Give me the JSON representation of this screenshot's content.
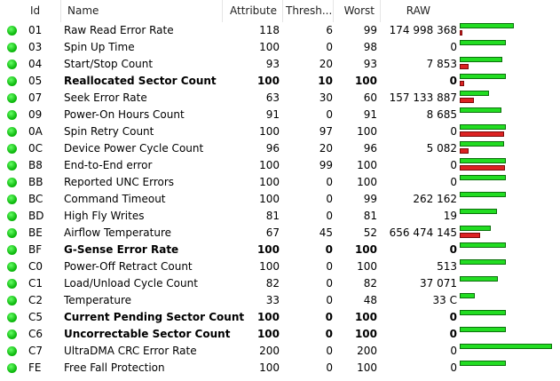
{
  "table": {
    "header": [
      "Id",
      "Name",
      "Attribute",
      "Thresh...",
      "Worst",
      "RAW"
    ],
    "rows": [
      {
        "id": "01",
        "name": "Raw Read Error Rate",
        "attribute": 118,
        "threshold": 6,
        "worst": 99,
        "raw": "174 998 368",
        "bold": false
      },
      {
        "id": "03",
        "name": "Spin Up Time",
        "attribute": 100,
        "threshold": 0,
        "worst": 98,
        "raw": "0",
        "bold": false
      },
      {
        "id": "04",
        "name": "Start/Stop Count",
        "attribute": 93,
        "threshold": 20,
        "worst": 93,
        "raw": "7 853",
        "bold": false
      },
      {
        "id": "05",
        "name": "Reallocated Sector Count",
        "attribute": 100,
        "threshold": 10,
        "worst": 100,
        "raw": "0",
        "bold": true
      },
      {
        "id": "07",
        "name": "Seek Error Rate",
        "attribute": 63,
        "threshold": 30,
        "worst": 60,
        "raw": "157 133 887",
        "bold": false
      },
      {
        "id": "09",
        "name": "Power-On Hours Count",
        "attribute": 91,
        "threshold": 0,
        "worst": 91,
        "raw": "8 685",
        "bold": false
      },
      {
        "id": "0A",
        "name": "Spin Retry Count",
        "attribute": 100,
        "threshold": 97,
        "worst": 100,
        "raw": "0",
        "bold": false
      },
      {
        "id": "0C",
        "name": "Device Power Cycle Count",
        "attribute": 96,
        "threshold": 20,
        "worst": 96,
        "raw": "5 082",
        "bold": false
      },
      {
        "id": "B8",
        "name": "End-to-End error",
        "attribute": 100,
        "threshold": 99,
        "worst": 100,
        "raw": "0",
        "bold": false
      },
      {
        "id": "BB",
        "name": "Reported UNC Errors",
        "attribute": 100,
        "threshold": 0,
        "worst": 100,
        "raw": "0",
        "bold": false
      },
      {
        "id": "BC",
        "name": "Command Timeout",
        "attribute": 100,
        "threshold": 0,
        "worst": 99,
        "raw": "262 162",
        "bold": false
      },
      {
        "id": "BD",
        "name": "High Fly Writes",
        "attribute": 81,
        "threshold": 0,
        "worst": 81,
        "raw": "19",
        "bold": false
      },
      {
        "id": "BE",
        "name": "Airflow Temperature",
        "attribute": 67,
        "threshold": 45,
        "worst": 52,
        "raw": "656 474 145",
        "bold": false
      },
      {
        "id": "BF",
        "name": "G-Sense Error Rate",
        "attribute": 100,
        "threshold": 0,
        "worst": 100,
        "raw": "0",
        "bold": true
      },
      {
        "id": "C0",
        "name": "Power-Off Retract Count",
        "attribute": 100,
        "threshold": 0,
        "worst": 100,
        "raw": "513",
        "bold": false
      },
      {
        "id": "C1",
        "name": "Load/Unload Cycle Count",
        "attribute": 82,
        "threshold": 0,
        "worst": 82,
        "raw": "37 071",
        "bold": false
      },
      {
        "id": "C2",
        "name": "Temperature",
        "attribute": 33,
        "threshold": 0,
        "worst": 48,
        "raw": "33 C",
        "bold": false
      },
      {
        "id": "C5",
        "name": "Current Pending Sector Count",
        "attribute": 100,
        "threshold": 0,
        "worst": 100,
        "raw": "0",
        "bold": true
      },
      {
        "id": "C6",
        "name": "Uncorrectable Sector Count",
        "attribute": 100,
        "threshold": 0,
        "worst": 100,
        "raw": "0",
        "bold": true
      },
      {
        "id": "C7",
        "name": "UltraDMA CRC Error Rate",
        "attribute": 200,
        "threshold": 0,
        "worst": 200,
        "raw": "0",
        "bold": false
      },
      {
        "id": "FE",
        "name": "Free Fall Protection",
        "attribute": 100,
        "threshold": 0,
        "worst": 100,
        "raw": "0",
        "bold": false
      }
    ]
  }
}
